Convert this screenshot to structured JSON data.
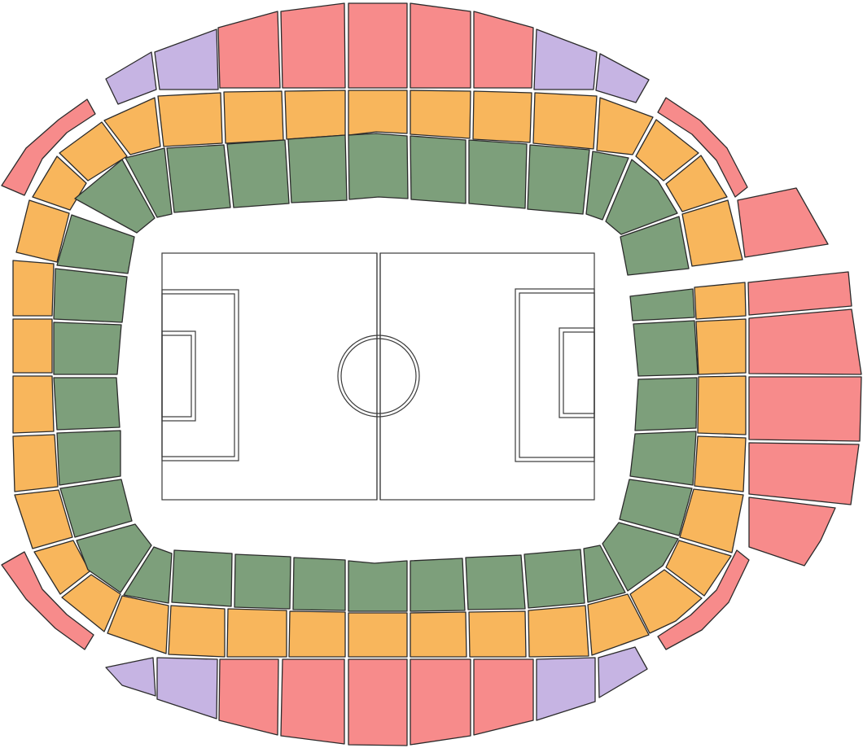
{
  "map": {
    "legend_colors": {
      "inner_ring": "#7d9f7b",
      "middle_ring": "#f8b65c",
      "outer_premium": "#f78b8b",
      "outer_corner": "#c6b4e3",
      "pitch": "#ffffff",
      "outline": "#2b2b2b"
    },
    "tier_names": [
      "inner_ring",
      "middle_ring",
      "outer_premium",
      "outer_corner"
    ]
  }
}
